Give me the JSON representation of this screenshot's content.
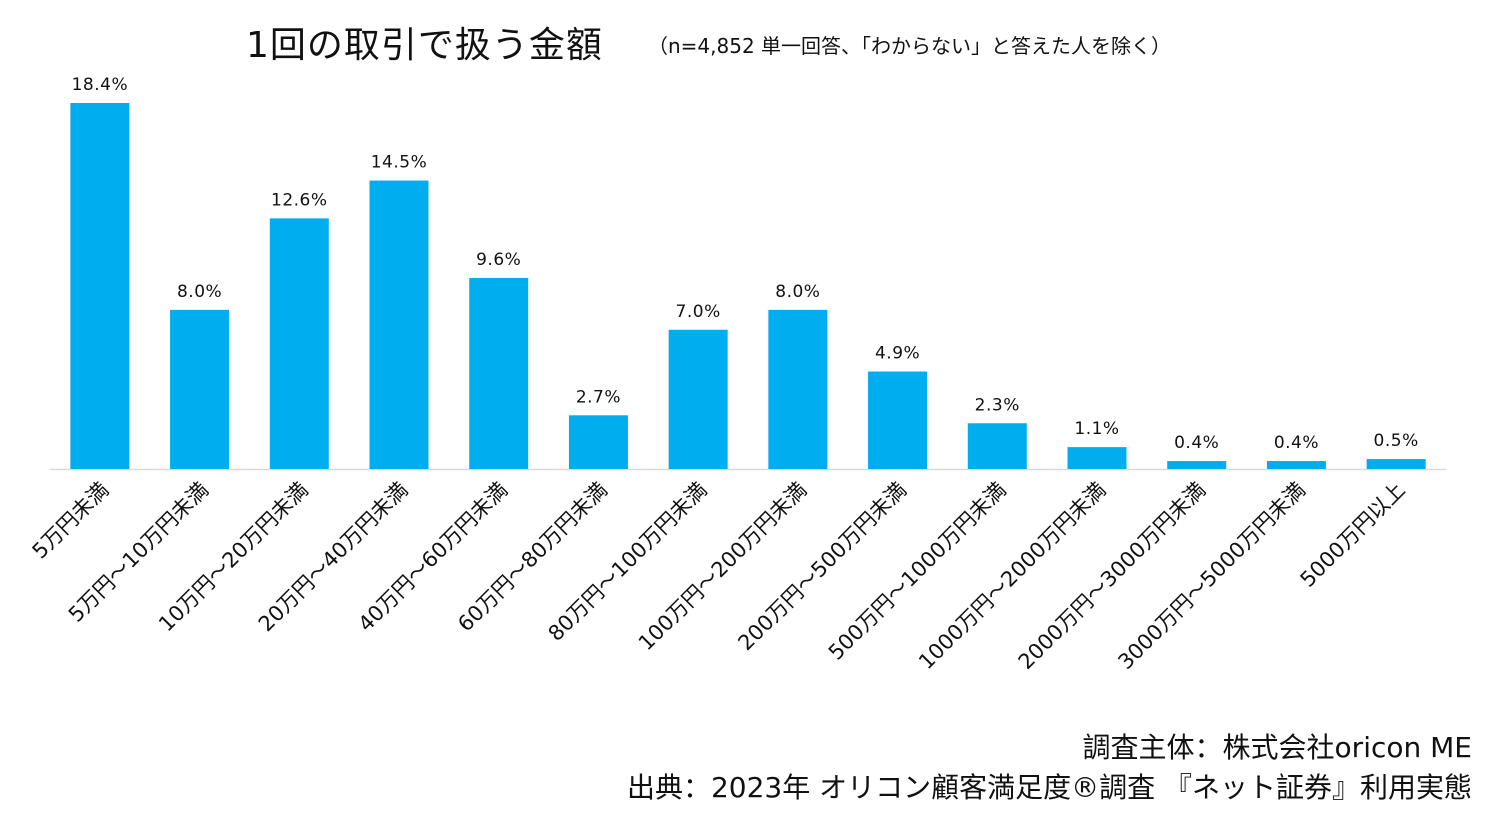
{
  "chart_data": {
    "type": "bar",
    "title": "1回の取引で扱う金額",
    "subtitle": "（n=4,852 単一回答、「わからない」と答えた人を除く）",
    "categories": [
      "5万円未満",
      "5万円～10万円未満",
      "10万円～20万円未満",
      "20万円～40万円未満",
      "40万円～60万円未満",
      "60万円～80万円未満",
      "80万円～100万円未満",
      "100万円～200万円未満",
      "200万円～500万円未満",
      "500万円～1000万円未満",
      "1000万円～2000万円未満",
      "2000万円～3000万円未満",
      "3000万円～5000万円未満",
      "5000万円以上"
    ],
    "values": [
      18.4,
      8.0,
      12.6,
      14.5,
      9.6,
      2.7,
      7.0,
      8.0,
      4.9,
      2.3,
      1.1,
      0.4,
      0.4,
      0.5
    ],
    "value_labels": [
      "18.4%",
      "8.0%",
      "12.6%",
      "14.5%",
      "9.6%",
      "2.7%",
      "7.0%",
      "8.0%",
      "4.9%",
      "2.3%",
      "1.1%",
      "0.4%",
      "0.4%",
      "0.5%"
    ],
    "unit": "%",
    "ylim": [
      0,
      18.4
    ],
    "grid": false,
    "legend": "none",
    "xlabel": "",
    "ylabel": "",
    "bar_color": "#00AEEF",
    "axis_color": "#D9D9D9"
  },
  "credits": {
    "survey": "調査主体：株式会社oricon ME",
    "source": "出典：2023年 オリコン顧客満足度®調査 『ネット証券』利用実態"
  }
}
